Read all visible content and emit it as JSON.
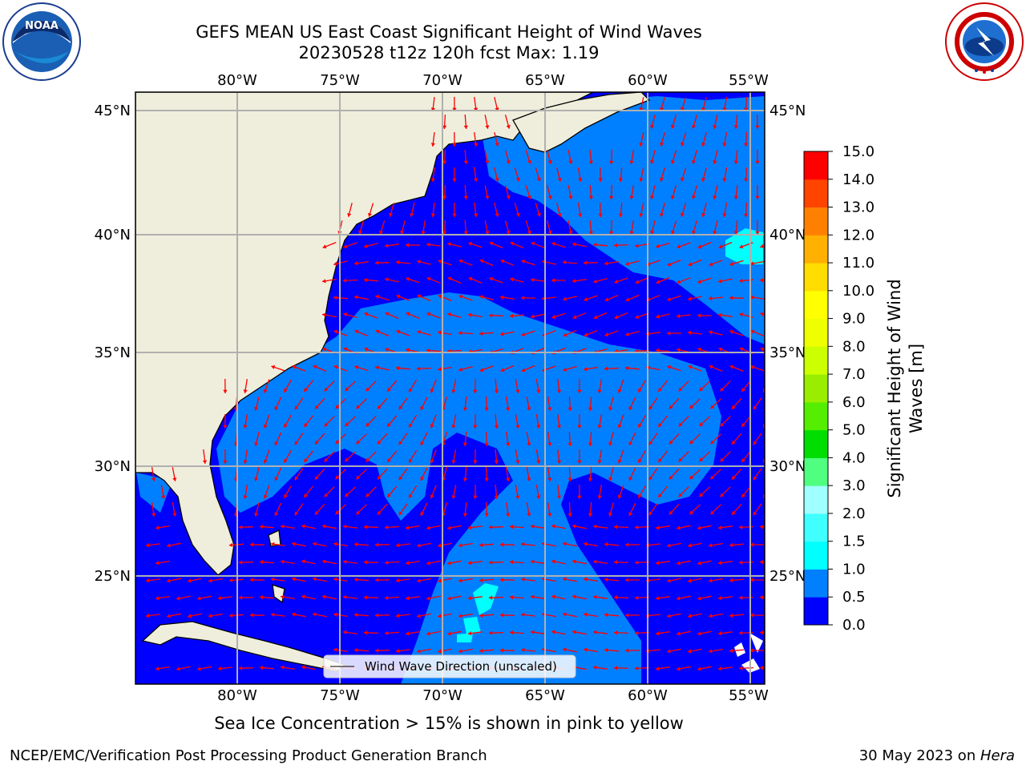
{
  "header": {
    "title_line1": "GEFS MEAN US East Coast Significant Height of Wind Waves",
    "title_line2": "20230528 t12z 120h fcst   Max: 1.19"
  },
  "logos": {
    "left": {
      "text": "NOAA",
      "icon": "noaa-logo"
    },
    "right": {
      "icon": "nws-logo"
    }
  },
  "map": {
    "lon_labels": [
      "80°W",
      "75°W",
      "70°W",
      "65°W",
      "60°W",
      "55°W"
    ],
    "lat_labels": [
      "45°N",
      "40°N",
      "35°N",
      "30°N",
      "25°N"
    ],
    "legend_label": "Wind Wave Direction (unscaled)"
  },
  "colorbar": {
    "label": "Significant Height of Wind Waves [m]",
    "ticks": [
      "0.0",
      "0.5",
      "1.0",
      "1.5",
      "2.0",
      "3.0",
      "4.0",
      "5.0",
      "6.0",
      "7.0",
      "8.0",
      "9.0",
      "10.0",
      "11.0",
      "12.0",
      "13.0",
      "14.0",
      "15.0"
    ],
    "colors": [
      "#0000ff",
      "#0080ff",
      "#00ffff",
      "#40ffff",
      "#a0ffff",
      "#50ff80",
      "#00dd00",
      "#55ee00",
      "#99ee00",
      "#ccff00",
      "#eeff00",
      "#ffff00",
      "#ffdd00",
      "#ffb000",
      "#ff8000",
      "#ff4400",
      "#ff0000"
    ]
  },
  "colors": {
    "land": "#efeedc",
    "ocean_low": "#0000ff",
    "ocean_mid": "#0080ff",
    "ocean_high": "#00ffff",
    "arrow": "#ff0000",
    "grid": "#b0b0b0"
  },
  "footer": {
    "ice_note": "Sea Ice Concentration > 15% is shown in pink to yellow",
    "branch": "NCEP/EMC/Verification Post Processing Product Generation Branch",
    "date": "30 May 2023 on ",
    "machine": "Hera"
  }
}
